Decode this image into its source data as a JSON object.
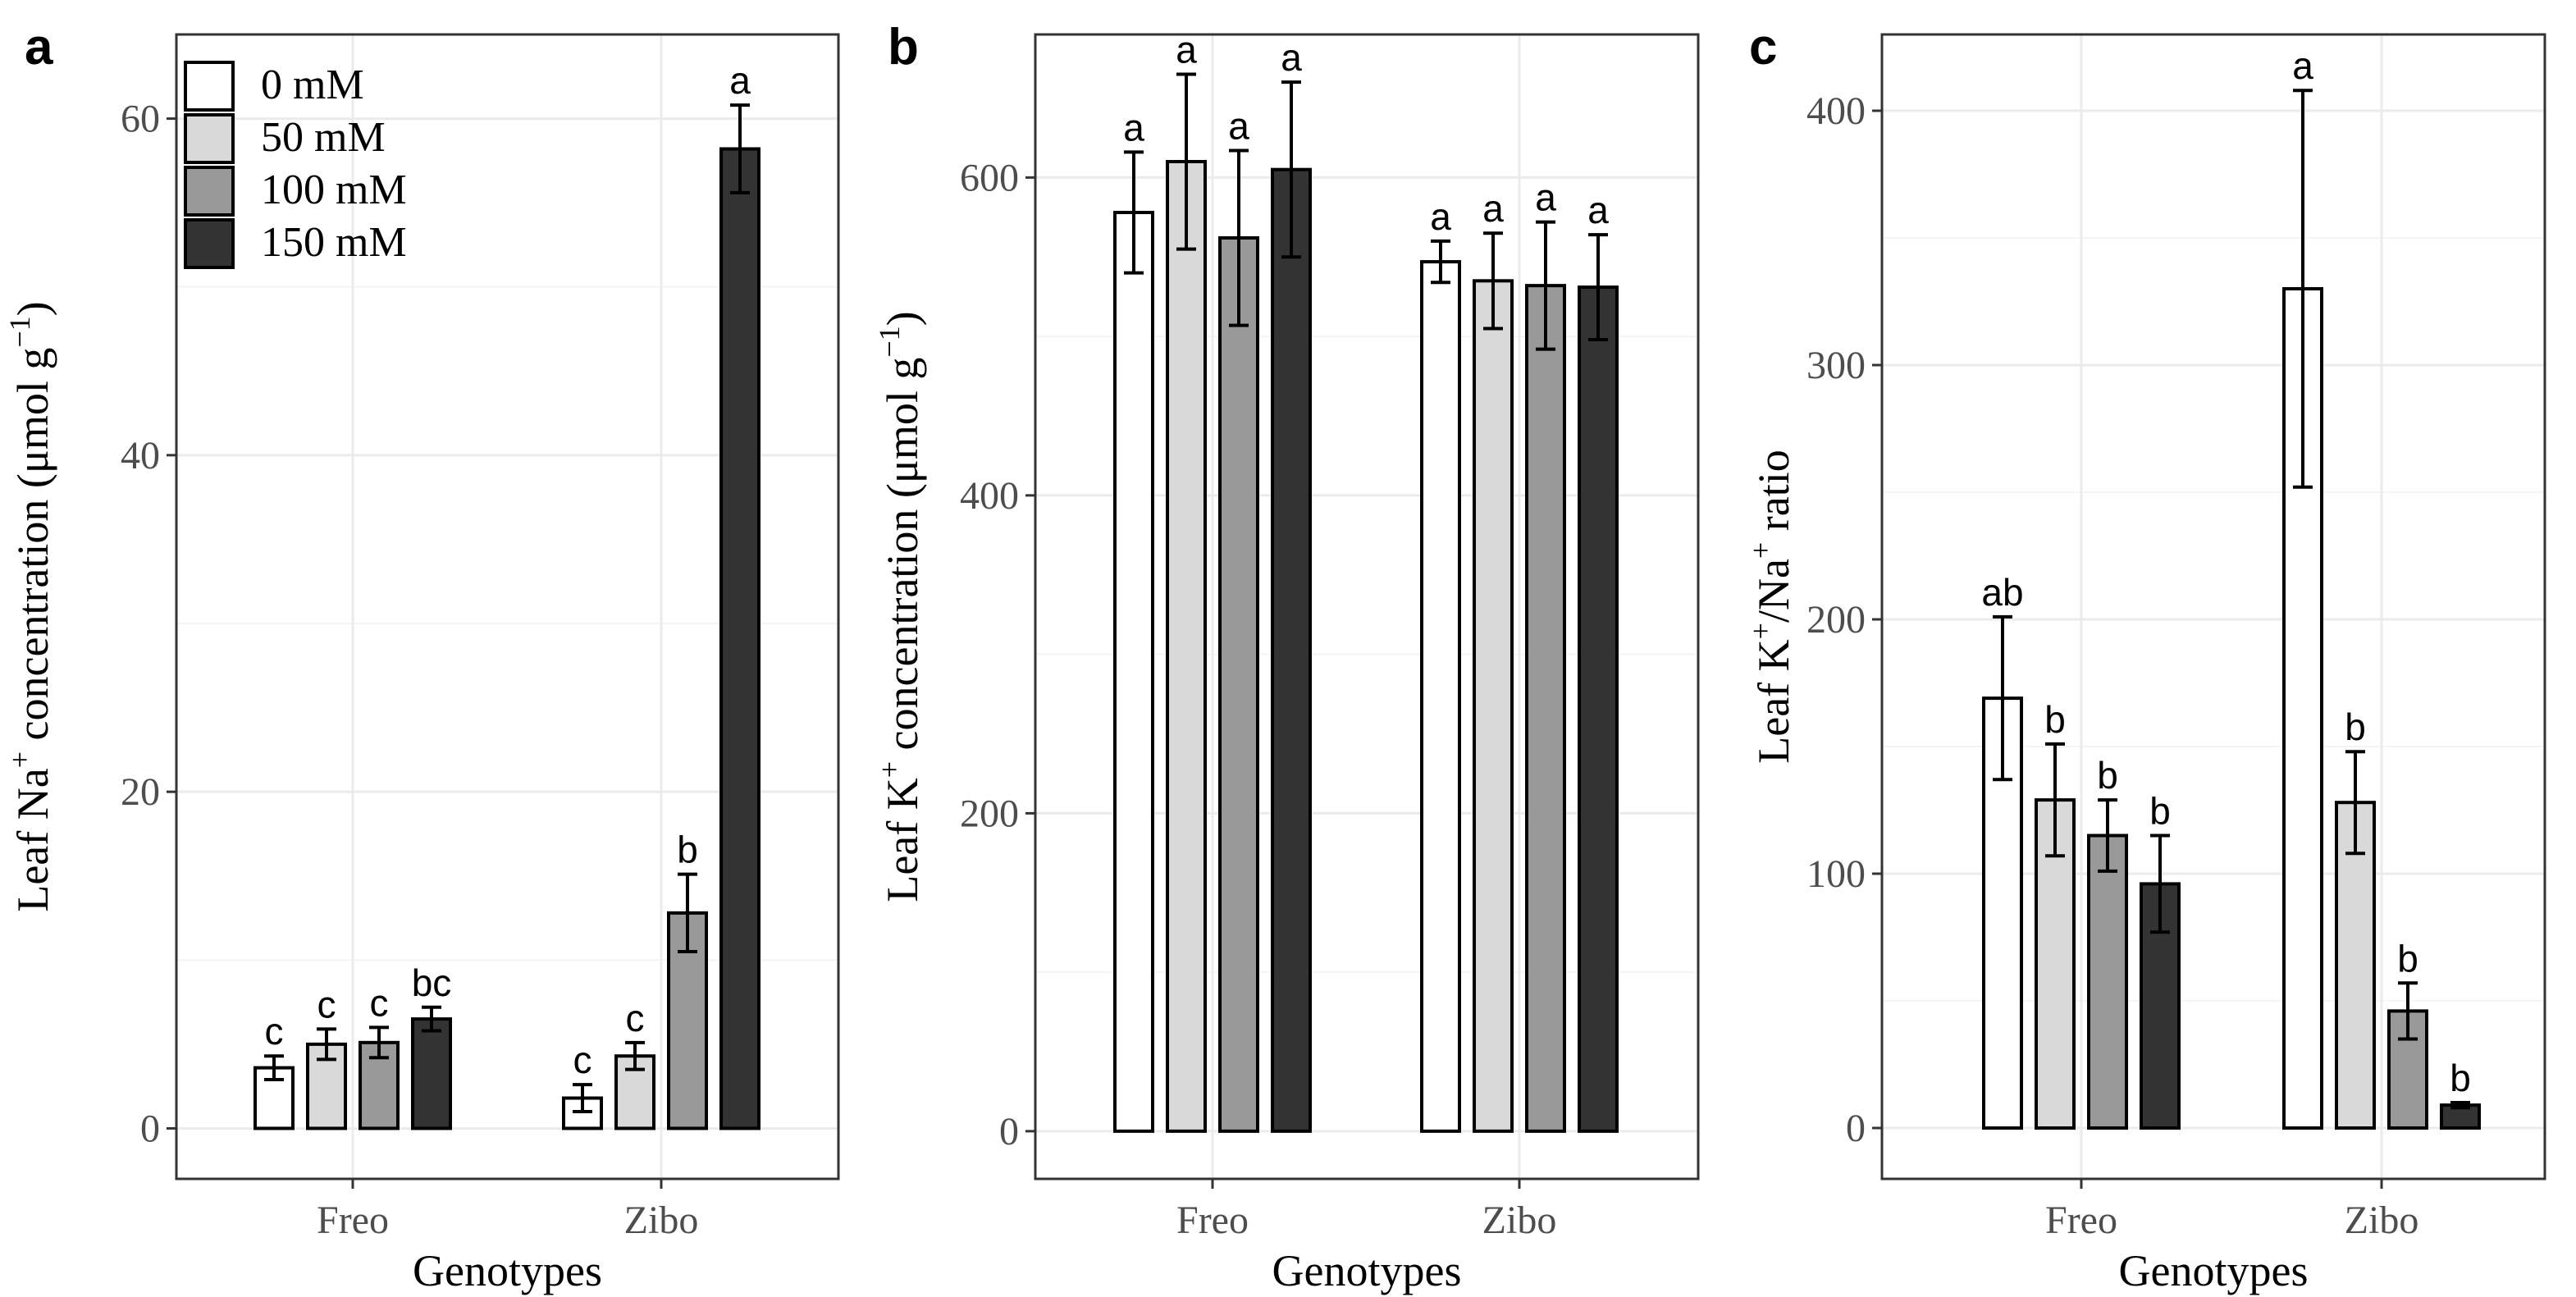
{
  "chart_data": [
    {
      "panel_label": "a",
      "type": "bar",
      "categories": [
        "Freo",
        "Zibo"
      ],
      "xlabel": "Genotypes",
      "ylabel_parts": [
        "Leaf Na",
        "+",
        " concentration (μmol g",
        "−1",
        ")"
      ],
      "ylim": [
        -3,
        65
      ],
      "yticks": [
        0,
        20,
        40,
        60
      ],
      "yticklabels": [
        "0",
        "20",
        "40",
        "60"
      ],
      "series": [
        {
          "name": "0 mM",
          "values": [
            3.6,
            1.8
          ],
          "errors": [
            0.7,
            0.8
          ],
          "letters": [
            "c",
            "c"
          ],
          "color": "#ffffff"
        },
        {
          "name": "50 mM",
          "values": [
            5.0,
            4.3
          ],
          "errors": [
            0.9,
            0.8
          ],
          "letters": [
            "c",
            "c"
          ],
          "color": "#d9d9d9"
        },
        {
          "name": "100 mM",
          "values": [
            5.1,
            12.8
          ],
          "errors": [
            0.9,
            2.3
          ],
          "letters": [
            "c",
            "b"
          ],
          "color": "#999999"
        },
        {
          "name": "150 mM",
          "values": [
            6.5,
            58.2
          ],
          "errors": [
            0.7,
            2.6
          ],
          "letters": [
            "bc",
            "a"
          ],
          "color": "#333333"
        }
      ],
      "legend": {
        "position": "top-left",
        "entries": [
          "0 mM",
          "50 mM",
          "100 mM",
          "150 mM"
        ]
      }
    },
    {
      "panel_label": "b",
      "type": "bar",
      "categories": [
        "Freo",
        "Zibo"
      ],
      "xlabel": "Genotypes",
      "ylabel_parts": [
        "Leaf K",
        "+",
        " concentration (μmol g",
        "−1",
        ")"
      ],
      "ylim": [
        -30,
        690
      ],
      "yticks": [
        0,
        200,
        400,
        600
      ],
      "yticklabels": [
        "0",
        "200",
        "400",
        "600"
      ],
      "series": [
        {
          "name": "0 mM",
          "values": [
            578,
            547
          ],
          "errors": [
            38,
            13
          ],
          "letters": [
            "a",
            "a"
          ],
          "color": "#ffffff"
        },
        {
          "name": "50 mM",
          "values": [
            610,
            535
          ],
          "errors": [
            55,
            30
          ],
          "letters": [
            "a",
            "a"
          ],
          "color": "#d9d9d9"
        },
        {
          "name": "100 mM",
          "values": [
            562,
            532
          ],
          "errors": [
            55,
            40
          ],
          "letters": [
            "a",
            "a"
          ],
          "color": "#999999"
        },
        {
          "name": "150 mM",
          "values": [
            605,
            531
          ],
          "errors": [
            55,
            33
          ],
          "letters": [
            "a",
            "a"
          ],
          "color": "#333333"
        }
      ]
    },
    {
      "panel_label": "c",
      "type": "bar",
      "categories": [
        "Freo",
        "Zibo"
      ],
      "xlabel": "Genotypes",
      "ylabel_parts": [
        "Leaf K",
        "+",
        "/Na",
        "+",
        " ratio"
      ],
      "ylim": [
        -20,
        430
      ],
      "yticks": [
        0,
        100,
        200,
        300,
        400
      ],
      "yticklabels": [
        "0",
        "100",
        "200",
        "300",
        "400"
      ],
      "series": [
        {
          "name": "0 mM",
          "values": [
            169,
            330
          ],
          "errors": [
            32,
            78
          ],
          "letters": [
            "ab",
            "a"
          ],
          "color": "#ffffff"
        },
        {
          "name": "50 mM",
          "values": [
            129,
            128
          ],
          "errors": [
            22,
            20
          ],
          "letters": [
            "b",
            "b"
          ],
          "color": "#d9d9d9"
        },
        {
          "name": "100 mM",
          "values": [
            115,
            46
          ],
          "errors": [
            14,
            11
          ],
          "letters": [
            "b",
            "b"
          ],
          "color": "#999999"
        },
        {
          "name": "150 mM",
          "values": [
            96,
            9
          ],
          "errors": [
            19,
            1
          ],
          "letters": [
            "b",
            "b"
          ],
          "color": "#333333"
        }
      ]
    }
  ]
}
